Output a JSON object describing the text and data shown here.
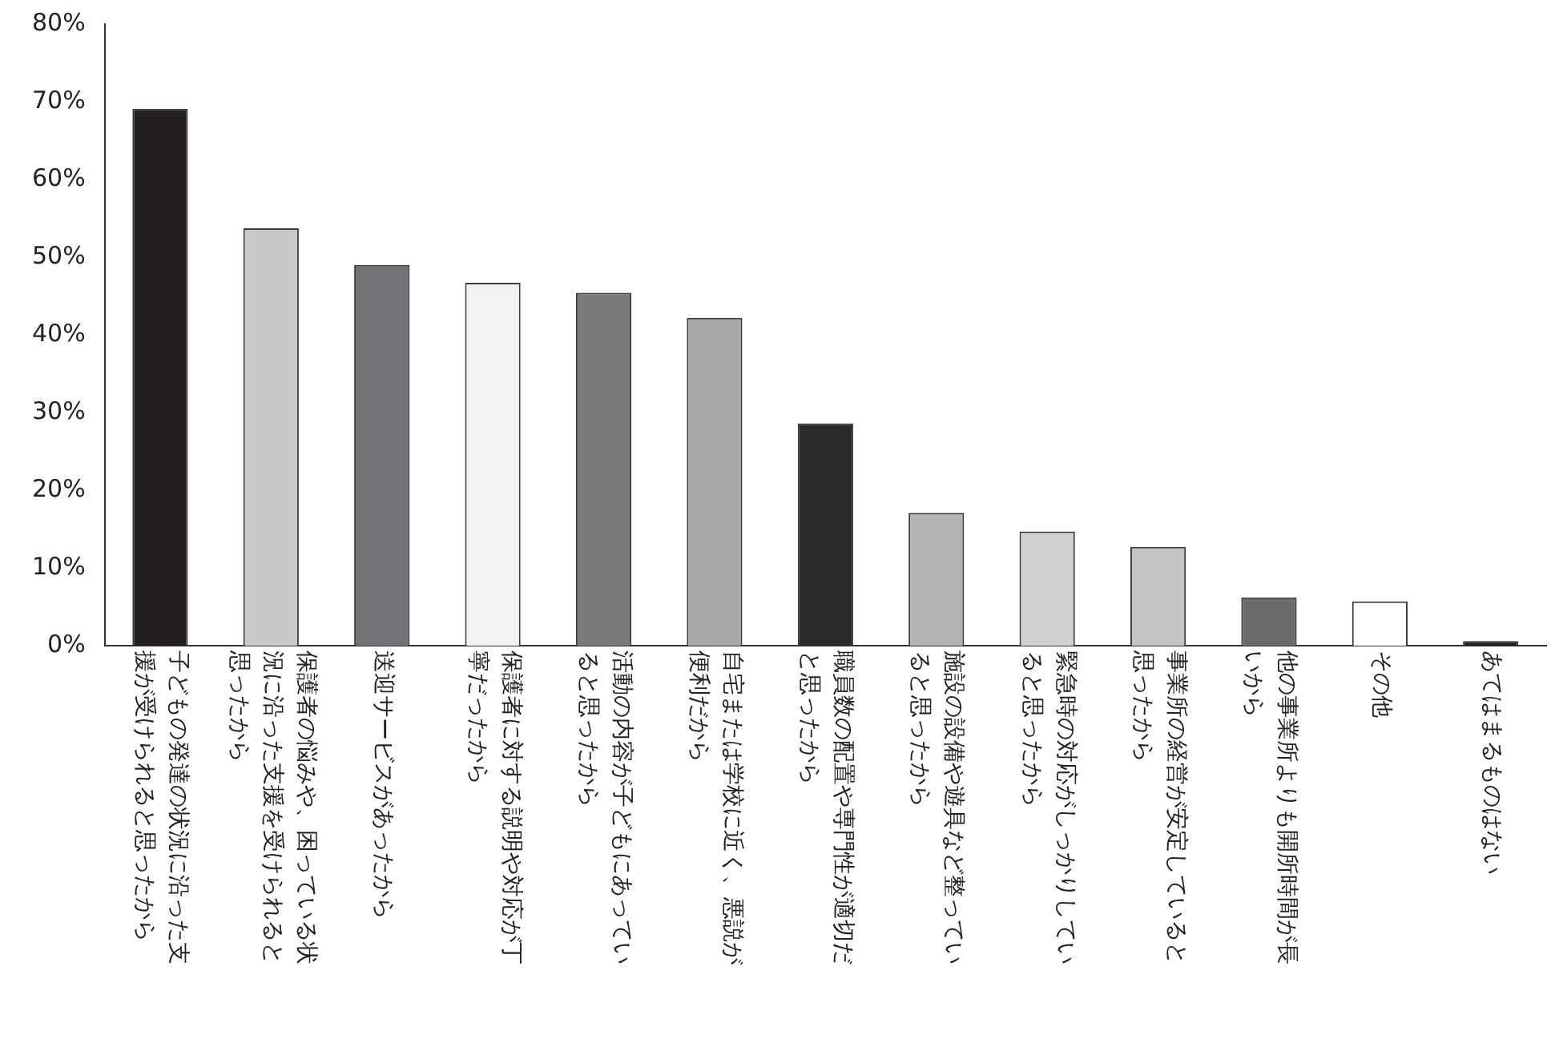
{
  "chart_data": {
    "type": "bar",
    "categories": [
      "子どもの発達の状況に沿った支援が受けられると思ったから",
      "保護者の悩みや、困っている状況に沿った支援を受けられると思ったから",
      "送迎サービスがあったから",
      "保護者に対する説明や対応が丁寧だったから",
      "活動の内容が子どもにあっていると思ったから",
      "自宅または学校に近く、悪説が便利だから",
      "職員数の配置や専門性が適切だと思ったから",
      "施設の設備や遊具など整っていると思ったから",
      "緊急時の対応がしっかりしていると思ったから",
      "事業所の経営が安定していると思ったから",
      "他の事業所よりも開所時間が長いから",
      "その他",
      "あてはまるものはない"
    ],
    "values": [
      69.1,
      53.7,
      49.0,
      46.7,
      45.4,
      42.2,
      28.6,
      17.1,
      14.7,
      12.7,
      6.2,
      5.7,
      0.6
    ],
    "colors": [
      "#231f20",
      "#c8c9cb",
      "#727376",
      "#f2f2f2",
      "#7a7a7a",
      "#a8a8a8",
      "#2a2a2a",
      "#b4b4b4",
      "#d0d0d0",
      "#c4c4c4",
      "#6a6a6a",
      "#ffffff",
      "#231f20"
    ],
    "ylim": [
      0,
      80
    ],
    "yticks": [
      {
        "value": 0,
        "label": "0%"
      },
      {
        "value": 10,
        "label": "10%"
      },
      {
        "value": 20,
        "label": "20%"
      },
      {
        "value": 30,
        "label": "30%"
      },
      {
        "value": 40,
        "label": "40%"
      },
      {
        "value": 50,
        "label": "50%"
      },
      {
        "value": 60,
        "label": "60%"
      },
      {
        "value": 70,
        "label": "70%"
      },
      {
        "value": 80,
        "label": "80%"
      }
    ],
    "grid": false,
    "legend": false
  }
}
